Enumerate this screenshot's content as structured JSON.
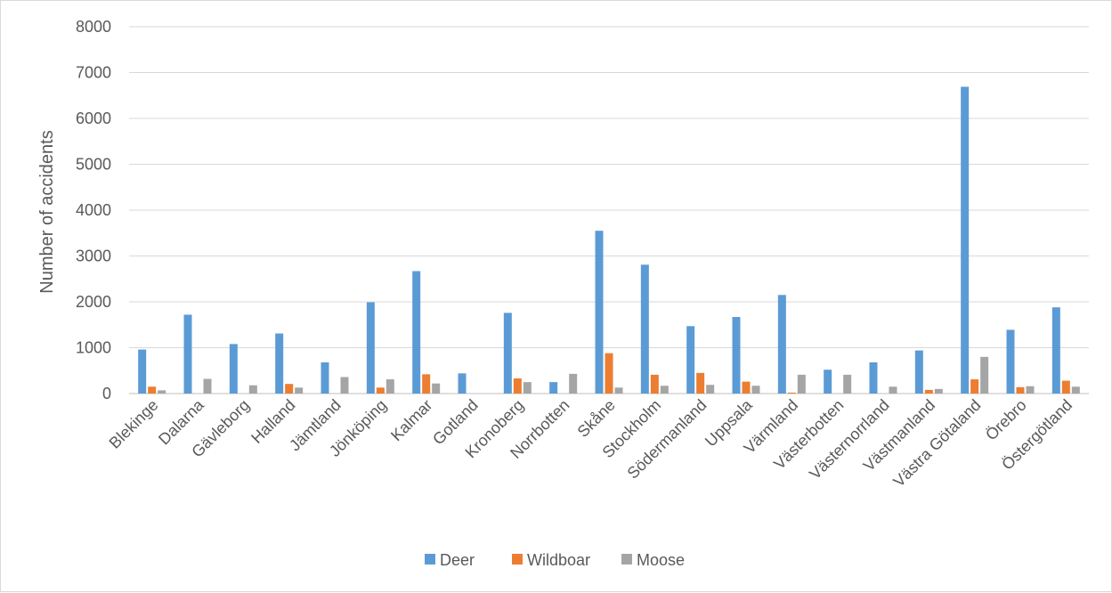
{
  "chart_data": {
    "type": "bar",
    "title": "",
    "xlabel": "",
    "ylabel": "Number of accidents",
    "ylim": [
      0,
      8000
    ],
    "yticks": [
      0,
      1000,
      2000,
      3000,
      4000,
      5000,
      6000,
      7000,
      8000
    ],
    "grid": true,
    "legend_position": "bottom",
    "categories": [
      "Blekinge",
      "Dalarna",
      "Gävleborg",
      "Halland",
      "Jämtland",
      "Jönköping",
      "Kalmar",
      "Gotland",
      "Kronoberg",
      "Norrbotten",
      "Skåne",
      "Stockholm",
      "Södermanland",
      "Uppsala",
      "Värmland",
      "Västerbotten",
      "Västernorrland",
      "Västmanland",
      "Västra Götaland",
      "Örebro",
      "Östergötland"
    ],
    "series": [
      {
        "name": "Deer",
        "color": "#5b9bd5",
        "values": [
          960,
          1720,
          1080,
          1310,
          680,
          1990,
          2670,
          440,
          1760,
          250,
          3550,
          2810,
          1470,
          1670,
          2150,
          520,
          680,
          940,
          6690,
          1390,
          1880
        ]
      },
      {
        "name": "Wildboar",
        "color": "#ed7d31",
        "values": [
          150,
          0,
          0,
          210,
          0,
          130,
          420,
          0,
          330,
          0,
          880,
          410,
          450,
          260,
          20,
          0,
          0,
          80,
          310,
          140,
          280
        ]
      },
      {
        "name": "Moose",
        "color": "#a5a5a5",
        "values": [
          70,
          320,
          180,
          130,
          360,
          310,
          220,
          0,
          250,
          430,
          130,
          170,
          190,
          170,
          410,
          410,
          150,
          100,
          800,
          160,
          150
        ]
      }
    ]
  }
}
